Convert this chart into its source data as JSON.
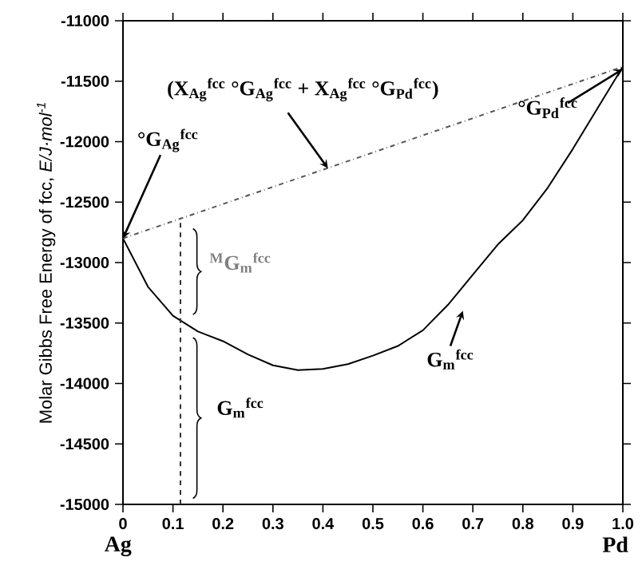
{
  "chart_data": {
    "type": "line",
    "ylabel": "Molar Gibbs Free Energy of fcc, *E/J·mol$^{-1}$*",
    "xlim": [
      0,
      1
    ],
    "ylim": [
      -15000,
      -11000
    ],
    "xticks": [
      {
        "value": 0,
        "label": "0"
      },
      0.1,
      0.2,
      0.3,
      0.4,
      0.5,
      0.6,
      0.7,
      0.8,
      0.9,
      {
        "value": 1,
        "label": "1.0"
      }
    ],
    "yticks": [
      -15000,
      -14500,
      -14000,
      -13500,
      -13000,
      -12500,
      -12000,
      -11500,
      -11000
    ],
    "grid": false,
    "marker": "none",
    "series": [
      {
        "color": "#000000",
        "line_style": "solid",
        "x": [
          0,
          0.05,
          0.1,
          0.15,
          0.2,
          0.25,
          0.3,
          0.35,
          0.4,
          0.45,
          0.5,
          0.55,
          0.6,
          0.65,
          0.7,
          0.75,
          0.8,
          0.85,
          0.9,
          0.95,
          1.0
        ],
        "values": [
          -12800,
          -13200,
          -13440,
          -13570,
          -13650,
          -13760,
          -13850,
          -13890,
          -13880,
          -13840,
          -13770,
          -13690,
          -13560,
          -13350,
          -13100,
          -12850,
          -12650,
          -12380,
          -12060,
          -11720,
          -11380
        ]
      },
      {
        "color": "#555555",
        "line_style": "dashdot",
        "x": [
          0,
          1
        ],
        "values": [
          -12800,
          -11380
        ]
      },
      {
        "color": "#333333",
        "line_style": "dashed",
        "x": [
          0.115,
          0.115
        ],
        "values": [
          -15000,
          -12640
        ]
      }
    ],
    "annotations": [
      "(X$_{Ag}$$^{fcc}$ °G$_{Ag}$$^{fcc}$ + X$_{Ag}$$^{fcc}$ °G$_{Pd}$$^{fcc}$)",
      {
        "text": "°G$_{Ag}$$^{fcc}$",
        "x": 0,
        "y": -12800
      },
      {
        "text": "°G$_{Pd}$$^{fcc}$",
        "x": 1,
        "y": -11400
      },
      {
        "text": "$^{M}$G$_{m}$$^{fcc}$",
        "x": 0.115,
        "y": -13070
      },
      {
        "text": "G$_{m}$$^{fcc}$",
        "x": 0.115,
        "y": -14270
      },
      "G$_{m}$$^{fcc}$",
      "Ag",
      "Pd"
    ]
  }
}
